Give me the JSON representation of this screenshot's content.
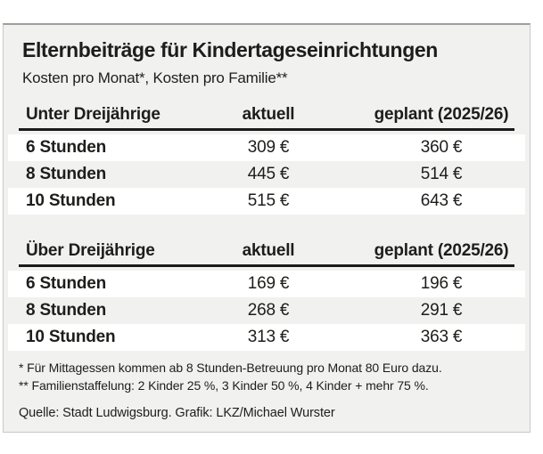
{
  "panel": {
    "title": "Elternbeiträge für Kindertageseinrichtungen",
    "subtitle": "Kosten pro Monat*, Kosten pro Familie**"
  },
  "tables": [
    {
      "header": {
        "label": "Unter Dreijährige",
        "col2": "aktuell",
        "col3": "geplant (2025/26)"
      },
      "rows": [
        {
          "label": "6 Stunden",
          "aktuell": "309 €",
          "geplant": "360 €"
        },
        {
          "label": "8 Stunden",
          "aktuell": "445 €",
          "geplant": "514 €"
        },
        {
          "label": "10 Stunden",
          "aktuell": "515 €",
          "geplant": "643 €"
        }
      ]
    },
    {
      "header": {
        "label": "Über Dreijährige",
        "col2": "aktuell",
        "col3": "geplant (2025/26)"
      },
      "rows": [
        {
          "label": "6 Stunden",
          "aktuell": "169 €",
          "geplant": "196 €"
        },
        {
          "label": "8 Stunden",
          "aktuell": "268 €",
          "geplant": "291 €"
        },
        {
          "label": "10 Stunden",
          "aktuell": "313 €",
          "geplant": "363 €"
        }
      ]
    }
  ],
  "footnotes": [
    "* Für Mittagessen kommen ab 8 Stunden-Betreuung pro Monat 80 Euro dazu.",
    "** Familienstaffelung: 2 Kinder 25 %, 3 Kinder 50 %, 4 Kinder + mehr 75 %."
  ],
  "source": "Quelle: Stadt Ludwigsburg. Grafik: LKZ/Michael Wurster",
  "colors": {
    "panel_background": "#f1f1ef",
    "row_stripe": "#ffffff",
    "text": "#1d1d1b",
    "header_rule": "#1a1a1a",
    "panel_border": "#c8c8c8",
    "panel_border_top": "#9e9e9e"
  },
  "chart_data": [
    {
      "type": "table",
      "title": "Elternbeiträge für Kindertageseinrichtungen – Unter Dreijährige",
      "columns": [
        "Unter Dreijährige",
        "aktuell",
        "geplant (2025/26)"
      ],
      "unit": "€ pro Monat",
      "rows": [
        [
          "6 Stunden",
          309,
          360
        ],
        [
          "8 Stunden",
          445,
          514
        ],
        [
          "10 Stunden",
          515,
          643
        ]
      ]
    },
    {
      "type": "table",
      "title": "Elternbeiträge für Kindertageseinrichtungen – Über Dreijährige",
      "columns": [
        "Über Dreijährige",
        "aktuell",
        "geplant (2025/26)"
      ],
      "unit": "€ pro Monat",
      "rows": [
        [
          "6 Stunden",
          169,
          196
        ],
        [
          "8 Stunden",
          268,
          291
        ],
        [
          "10 Stunden",
          313,
          363
        ]
      ]
    }
  ]
}
